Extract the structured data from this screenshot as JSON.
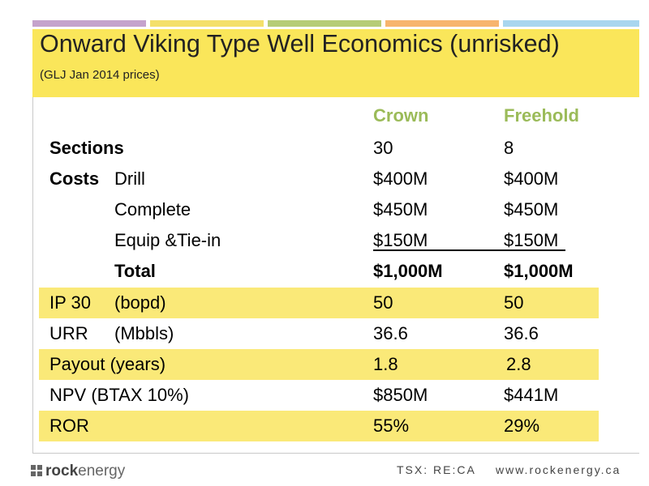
{
  "title": "Onward Viking Type Well Economics (unrisked)",
  "subtitle": "(GLJ Jan 2014 prices)",
  "columns": {
    "crown": "Crown",
    "freehold": "Freehold"
  },
  "rows": {
    "sections": {
      "label": "Sections",
      "crown": "30",
      "freehold": "8"
    },
    "costs_label": "Costs",
    "drill": {
      "label": "Drill",
      "crown": "$400M",
      "freehold": "$400M"
    },
    "complete": {
      "label": "Complete",
      "crown": "$450M",
      "freehold": "$450M"
    },
    "equip": {
      "label": "Equip &Tie-in",
      "crown": "$150M",
      "freehold": "$150M"
    },
    "total": {
      "label": "Total",
      "crown": "$1,000M",
      "freehold": "$1,000M"
    },
    "ip30": {
      "label": "IP 30",
      "unit": "(bopd)",
      "crown": "50",
      "freehold": "50"
    },
    "urr": {
      "label": "URR",
      "unit": "(Mbbls)",
      "crown": "36.6",
      "freehold": "36.6"
    },
    "payout": {
      "label": "Payout (years)",
      "crown": "1.8",
      "freehold": "2.8"
    },
    "npv": {
      "label": "NPV (BTAX 10%)",
      "crown": "$850M",
      "freehold": "$441M"
    },
    "ror": {
      "label": "ROR",
      "crown": "55%",
      "freehold": "29%"
    }
  },
  "footer": {
    "logo_rock": "rock",
    "logo_energy": "energy",
    "ticker": "TSX: RE:CA",
    "website": "www.rockenergy.ca"
  },
  "colors": {
    "highlight": "#fae978",
    "title_band": "#fae65a",
    "column_header": "#9bbb59"
  }
}
